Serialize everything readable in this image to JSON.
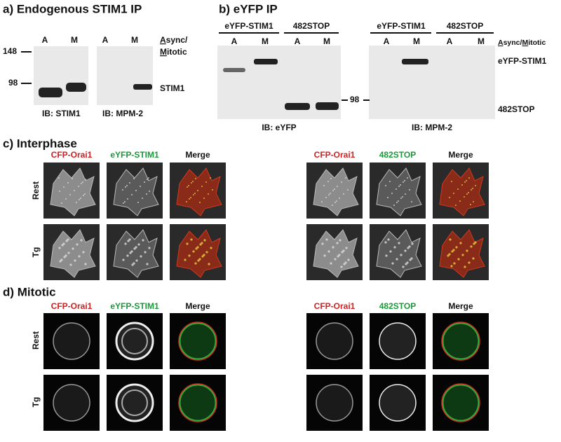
{
  "panel_a": {
    "title": "a) Endogenous STIM1 IP",
    "lanes": [
      "A",
      "M",
      "A",
      "M"
    ],
    "markers": [
      148,
      98
    ],
    "key": {
      "async_initial": "A",
      "async_rest": "sync/",
      "mitotic_initial": "M",
      "mitotic_rest": "itotic"
    },
    "band_label": "STIM1",
    "blots": [
      "IB: STIM1",
      "IB: MPM-2"
    ]
  },
  "panel_b": {
    "title": "b) eYFP IP",
    "groups": [
      "eYFP-STIM1",
      "482STOP",
      "eYFP-STIM1",
      "482STOP"
    ],
    "lanes": [
      "A",
      "M",
      "A",
      "M",
      "A",
      "M",
      "A",
      "M"
    ],
    "key": {
      "async_initial": "A",
      "async_rest": "sync/",
      "mitotic_initial": "M",
      "mitotic_rest": "itotic"
    },
    "band_labels": [
      "eYFP-STIM1",
      "482STOP"
    ],
    "marker": 98,
    "blots": [
      "IB: eYFP",
      "IB: MPM-2"
    ]
  },
  "panel_c": {
    "title": "c) Interphase",
    "columns": [
      "CFP-Orai1",
      "eYFP-STIM1",
      "Merge",
      "CFP-Orai1",
      "482STOP",
      "Merge"
    ],
    "rows": [
      "Rest",
      "Tg"
    ]
  },
  "panel_d": {
    "title": "d) Mitotic",
    "columns": [
      "CFP-Orai1",
      "eYFP-STIM1",
      "Merge",
      "CFP-Orai1",
      "482STOP",
      "Merge"
    ],
    "rows": [
      "Rest",
      "Tg"
    ]
  }
}
